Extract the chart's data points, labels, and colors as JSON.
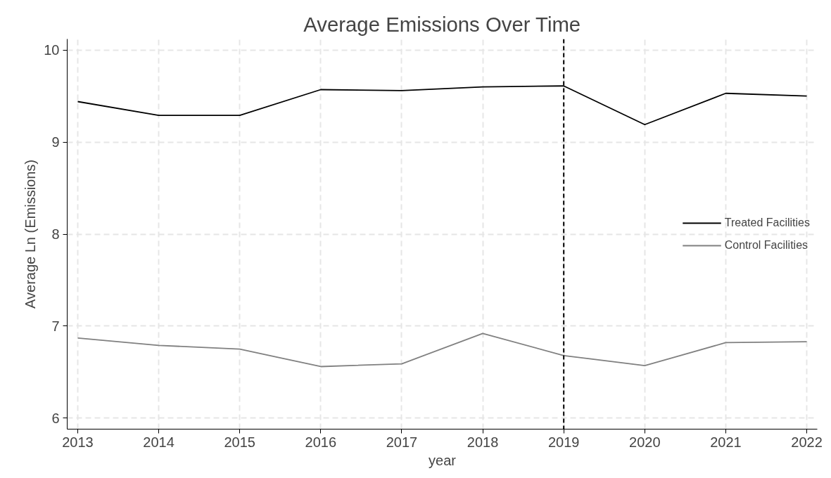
{
  "chart_data": {
    "type": "line",
    "title": "Average Emissions Over Time",
    "xlabel": "year",
    "ylabel": "Average Ln (Emissions)",
    "x": [
      2013,
      2014,
      2015,
      2016,
      2017,
      2018,
      2019,
      2020,
      2021,
      2022
    ],
    "series": [
      {
        "name": "Treated Facilities",
        "color": "#000000",
        "values": [
          9.44,
          9.29,
          9.29,
          9.57,
          9.56,
          9.6,
          9.61,
          9.19,
          9.53,
          9.5
        ]
      },
      {
        "name": "Control Facilities",
        "color": "#808080",
        "values": [
          6.87,
          6.79,
          6.75,
          6.56,
          6.59,
          6.92,
          6.68,
          6.57,
          6.82,
          6.83
        ]
      }
    ],
    "xlim": [
      2012.87,
      2022.13
    ],
    "ylim": [
      5.88,
      10.12
    ],
    "xticks": [
      2013,
      2014,
      2015,
      2016,
      2017,
      2018,
      2019,
      2020,
      2021,
      2022
    ],
    "yticks": [
      6,
      7,
      8,
      9,
      10
    ],
    "ref_lines": [
      {
        "axis": "x",
        "value": 2019,
        "color": "#000000",
        "line_style": "dashed"
      }
    ],
    "grid": true,
    "legend": "right",
    "marker": "none",
    "line_style": "solid"
  }
}
